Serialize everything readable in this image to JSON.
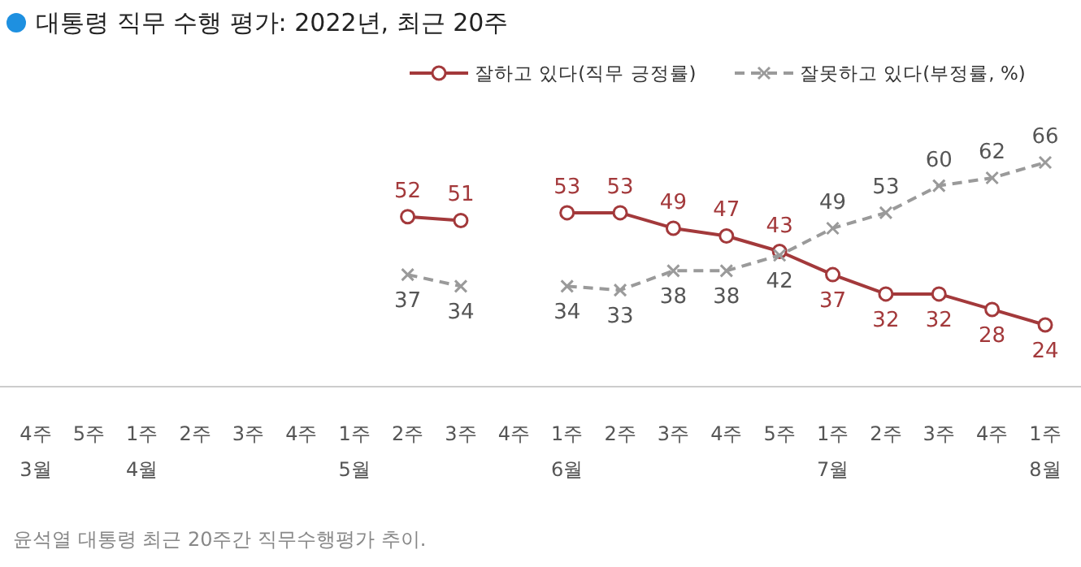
{
  "chart_data": {
    "type": "line",
    "title": "대통령 직무 수행 평가: 2022년, 최근 20주",
    "categories": [
      "4주\n3월",
      "5주",
      "1주\n4월",
      "2주",
      "3주",
      "4주",
      "1주\n5월",
      "2주",
      "3주",
      "4주",
      "1주\n6월",
      "2주",
      "3주",
      "4주",
      "5주",
      "1주\n7월",
      "2주",
      "3주",
      "4주",
      "1주\n8월"
    ],
    "series": [
      {
        "name": "잘하고 있다(직무 긍정률)",
        "color": "#a3393b",
        "marker": "circle",
        "line_style": "solid",
        "values": [
          null,
          null,
          null,
          null,
          null,
          null,
          null,
          52,
          51,
          null,
          53,
          53,
          49,
          47,
          43,
          37,
          32,
          32,
          28,
          24
        ]
      },
      {
        "name": "잘못하고 있다(부정률, %)",
        "color": "#9a9a9a",
        "marker": "cross",
        "line_style": "dashed",
        "values": [
          null,
          null,
          null,
          null,
          null,
          null,
          null,
          37,
          34,
          null,
          34,
          33,
          38,
          38,
          42,
          49,
          53,
          60,
          62,
          66
        ]
      }
    ],
    "tick_labels": "x",
    "data_labels": true,
    "legend": "top right",
    "grid": false,
    "annotations": [
      "윤석열 대통령 최근 20주간 직무수행평가 추이."
    ]
  }
}
